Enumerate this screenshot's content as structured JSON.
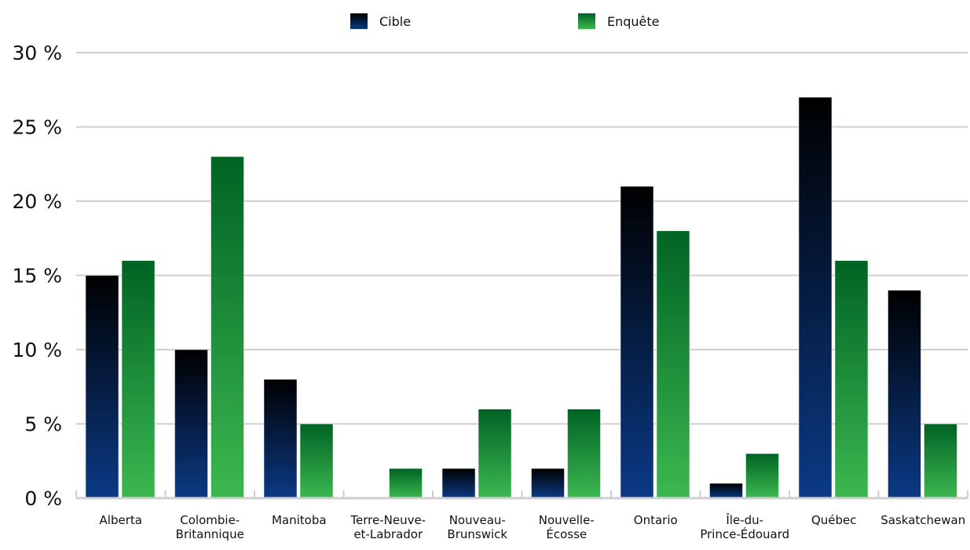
{
  "chart_data": {
    "type": "bar",
    "categories": [
      [
        "Alberta"
      ],
      [
        "Colombie-",
        "Britannique"
      ],
      [
        "Manitoba"
      ],
      [
        "Terre-Neuve-",
        "et-Labrador"
      ],
      [
        "Nouveau-",
        "Brunswick"
      ],
      [
        "Nouvelle-",
        "Écosse"
      ],
      [
        "Ontario"
      ],
      [
        "Île-du-",
        "Prince-Édouard"
      ],
      [
        "Québec"
      ],
      [
        "Saskatchewan"
      ]
    ],
    "series": [
      {
        "name": "Cible",
        "values": [
          15,
          10,
          8,
          0,
          2,
          2,
          21,
          1,
          27,
          14
        ],
        "color_top": "#000000",
        "color_bottom": "#0b3a86"
      },
      {
        "name": "Enquête",
        "values": [
          16,
          23,
          5,
          2,
          6,
          6,
          18,
          3,
          16,
          5
        ],
        "color_top": "#006324",
        "color_bottom": "#3cb850"
      }
    ],
    "ylim": [
      0,
      30
    ],
    "yticks": [
      0,
      5,
      10,
      15,
      20,
      25,
      30
    ],
    "ytick_suffix": " %",
    "grid": true,
    "legend": "top-center"
  }
}
